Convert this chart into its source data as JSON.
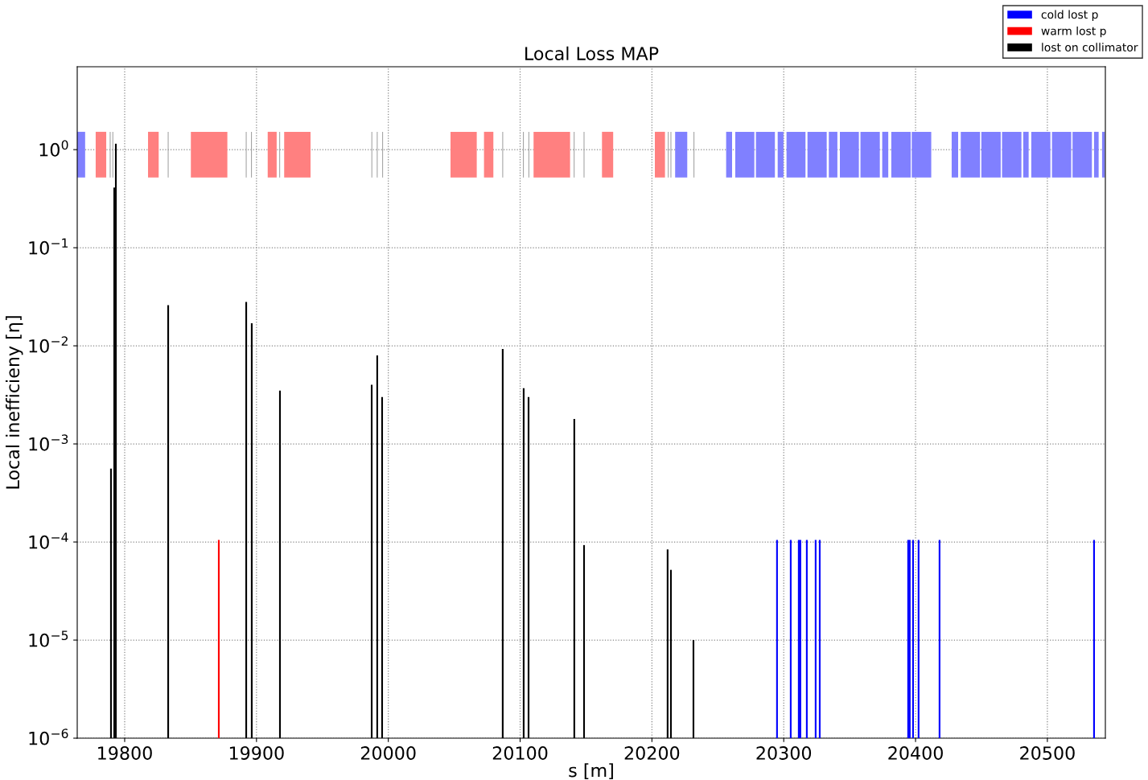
{
  "chart_data": {
    "type": "bar",
    "title": "Local Loss MAP",
    "xlabel": "s [m]",
    "ylabel": "Local inefficieny [η]",
    "log": "y",
    "grid": true,
    "legend": "top right",
    "xlim": [
      19764,
      20544
    ],
    "xticks": [
      19800,
      19900,
      20000,
      20100,
      20200,
      20300,
      20400,
      20500
    ],
    "ylim": [
      1e-06,
      7
    ],
    "yticks": [
      {
        "value": 1e-06,
        "label": "10$^{−6}$"
      },
      {
        "value": 1e-05,
        "label": "10$^{−5}$"
      },
      {
        "value": 0.0001,
        "label": "10$^{−4}$"
      },
      {
        "value": 0.001,
        "label": "10$^{−3}$"
      },
      {
        "value": 0.01,
        "label": "10$^{−2}$"
      },
      {
        "value": 0.1,
        "label": "10$^{−1}$"
      },
      {
        "value": 1,
        "label": "10$^{0}$"
      }
    ],
    "series": [
      {
        "name": "cold lost p",
        "color": "#0000ff",
        "x": [
          20294.9,
          20305.3,
          20311.4,
          20312.6,
          20317.5,
          20324.2,
          20327.3,
          20394.4,
          20395.6,
          20398.1,
          20402.3,
          20418.2,
          20535.4
        ],
        "values": [
          0.000105,
          0.000105,
          0.000105,
          0.000105,
          0.000105,
          0.000105,
          0.000105,
          0.000105,
          0.000105,
          0.000105,
          0.000105,
          0.000105,
          0.000105
        ]
      },
      {
        "name": "warm lost p",
        "color": "#ff0000",
        "x": [
          19871.4
        ],
        "values": [
          0.000105
        ]
      },
      {
        "name": "lost on collimator",
        "color": "#000000",
        "x": [
          19789.6,
          19792.1,
          19793.3,
          19833.0,
          19892.2,
          19896.4,
          19917.8,
          19987.4,
          19991.6,
          19995.3,
          20086.8,
          20102.7,
          20106.4,
          20141.1,
          20148.5,
          20211.9,
          20214.4,
          20231.5
        ],
        "values": [
          0.00056,
          0.41,
          1.15,
          0.026,
          0.028,
          0.017,
          0.0035,
          0.004,
          0.008,
          0.003,
          0.0093,
          0.0037,
          0.003,
          0.0018,
          9.3e-05,
          8.4e-05,
          5.2e-05,
          1e-05
        ]
      }
    ],
    "bands": [
      {
        "axis": "x",
        "from": 19764,
        "to": 19770,
        "color": "#8080ff"
      },
      {
        "axis": "x",
        "from": 19778,
        "to": 19786,
        "color": "#ff8080"
      },
      {
        "axis": "x",
        "from": 19788.7,
        "to": 19789.3,
        "color": "#999999"
      },
      {
        "axis": "x",
        "from": 19790.7,
        "to": 19791.3,
        "color": "#999999"
      },
      {
        "axis": "x",
        "from": 19817.7,
        "to": 19825.8,
        "color": "#ff8080"
      },
      {
        "axis": "x",
        "from": 19832.7,
        "to": 19833.3,
        "color": "#999999"
      },
      {
        "axis": "x",
        "from": 19850.2,
        "to": 19877.9,
        "color": "#ff8080"
      },
      {
        "axis": "x",
        "from": 19891.9,
        "to": 19892.5,
        "color": "#999999"
      },
      {
        "axis": "x",
        "from": 19895.9,
        "to": 19896.5,
        "color": "#999999"
      },
      {
        "axis": "x",
        "from": 19908.5,
        "to": 19915.3,
        "color": "#ff8080"
      },
      {
        "axis": "x",
        "from": 19917.3,
        "to": 19917.9,
        "color": "#999999"
      },
      {
        "axis": "x",
        "from": 19921,
        "to": 19941,
        "color": "#ff8080"
      },
      {
        "axis": "x",
        "from": 19987.2,
        "to": 19987.8,
        "color": "#999999"
      },
      {
        "axis": "x",
        "from": 19991.3,
        "to": 19991.9,
        "color": "#999999"
      },
      {
        "axis": "x",
        "from": 19995.4,
        "to": 19996,
        "color": "#999999"
      },
      {
        "axis": "x",
        "from": 20047.2,
        "to": 20067.1,
        "color": "#ff8080"
      },
      {
        "axis": "x",
        "from": 20072.6,
        "to": 20079.7,
        "color": "#ff8080"
      },
      {
        "axis": "x",
        "from": 20086.5,
        "to": 20087.1,
        "color": "#999999"
      },
      {
        "axis": "x",
        "from": 20102.2,
        "to": 20102.8,
        "color": "#999999"
      },
      {
        "axis": "x",
        "from": 20106.3,
        "to": 20106.9,
        "color": "#999999"
      },
      {
        "axis": "x",
        "from": 20110.2,
        "to": 20137.9,
        "color": "#ff8080"
      },
      {
        "axis": "x",
        "from": 20140.7,
        "to": 20141.3,
        "color": "#999999"
      },
      {
        "axis": "x",
        "from": 20148.2,
        "to": 20148.8,
        "color": "#999999"
      },
      {
        "axis": "x",
        "from": 20162.1,
        "to": 20170.6,
        "color": "#ff8080"
      },
      {
        "axis": "x",
        "from": 20202.2,
        "to": 20209.9,
        "color": "#ff8080"
      },
      {
        "axis": "x",
        "from": 20212.1,
        "to": 20212.7,
        "color": "#999999"
      },
      {
        "axis": "x",
        "from": 20214.1,
        "to": 20214.7,
        "color": "#999999"
      },
      {
        "axis": "x",
        "from": 20217.6,
        "to": 20226.8,
        "color": "#8080ff"
      },
      {
        "axis": "x",
        "from": 20231.6,
        "to": 20232.2,
        "color": "#999999"
      },
      {
        "axis": "x",
        "from": 20256.3,
        "to": 20260.8,
        "color": "#8080ff"
      },
      {
        "axis": "x",
        "from": 20263.2,
        "to": 20277.7,
        "color": "#8080ff"
      },
      {
        "axis": "x",
        "from": 20278.9,
        "to": 20293.3,
        "color": "#8080ff"
      },
      {
        "axis": "x",
        "from": 20295.4,
        "to": 20299.8,
        "color": "#8080ff"
      },
      {
        "axis": "x",
        "from": 20302.1,
        "to": 20316.5,
        "color": "#8080ff"
      },
      {
        "axis": "x",
        "from": 20318.0,
        "to": 20332.6,
        "color": "#8080ff"
      },
      {
        "axis": "x",
        "from": 20334.2,
        "to": 20340.7,
        "color": "#8080ff"
      },
      {
        "axis": "x",
        "from": 20342.6,
        "to": 20357.0,
        "color": "#8080ff"
      },
      {
        "axis": "x",
        "from": 20358.2,
        "to": 20372.9,
        "color": "#8080ff"
      },
      {
        "axis": "x",
        "from": 20374.7,
        "to": 20379.3,
        "color": "#8080ff"
      },
      {
        "axis": "x",
        "from": 20381.6,
        "to": 20396.3,
        "color": "#8080ff"
      },
      {
        "axis": "x",
        "from": 20397.1,
        "to": 20411.9,
        "color": "#8080ff"
      },
      {
        "axis": "x",
        "from": 20427.4,
        "to": 20432.3,
        "color": "#8080ff"
      },
      {
        "axis": "x",
        "from": 20434.3,
        "to": 20448.9,
        "color": "#8080ff"
      },
      {
        "axis": "x",
        "from": 20449.9,
        "to": 20464.6,
        "color": "#8080ff"
      },
      {
        "axis": "x",
        "from": 20465.6,
        "to": 20480.3,
        "color": "#8080ff"
      },
      {
        "axis": "x",
        "from": 20481.7,
        "to": 20485.8,
        "color": "#8080ff"
      },
      {
        "axis": "x",
        "from": 20487.8,
        "to": 20502.3,
        "color": "#8080ff"
      },
      {
        "axis": "x",
        "from": 20503.5,
        "to": 20518.1,
        "color": "#8080ff"
      },
      {
        "axis": "x",
        "from": 20519.1,
        "to": 20533.8,
        "color": "#8080ff"
      },
      {
        "axis": "x",
        "from": 20535.4,
        "to": 20538.9,
        "color": "#8080ff"
      },
      {
        "axis": "x",
        "from": 20541.5,
        "to": 20543.6,
        "color": "#8080ff"
      }
    ]
  }
}
